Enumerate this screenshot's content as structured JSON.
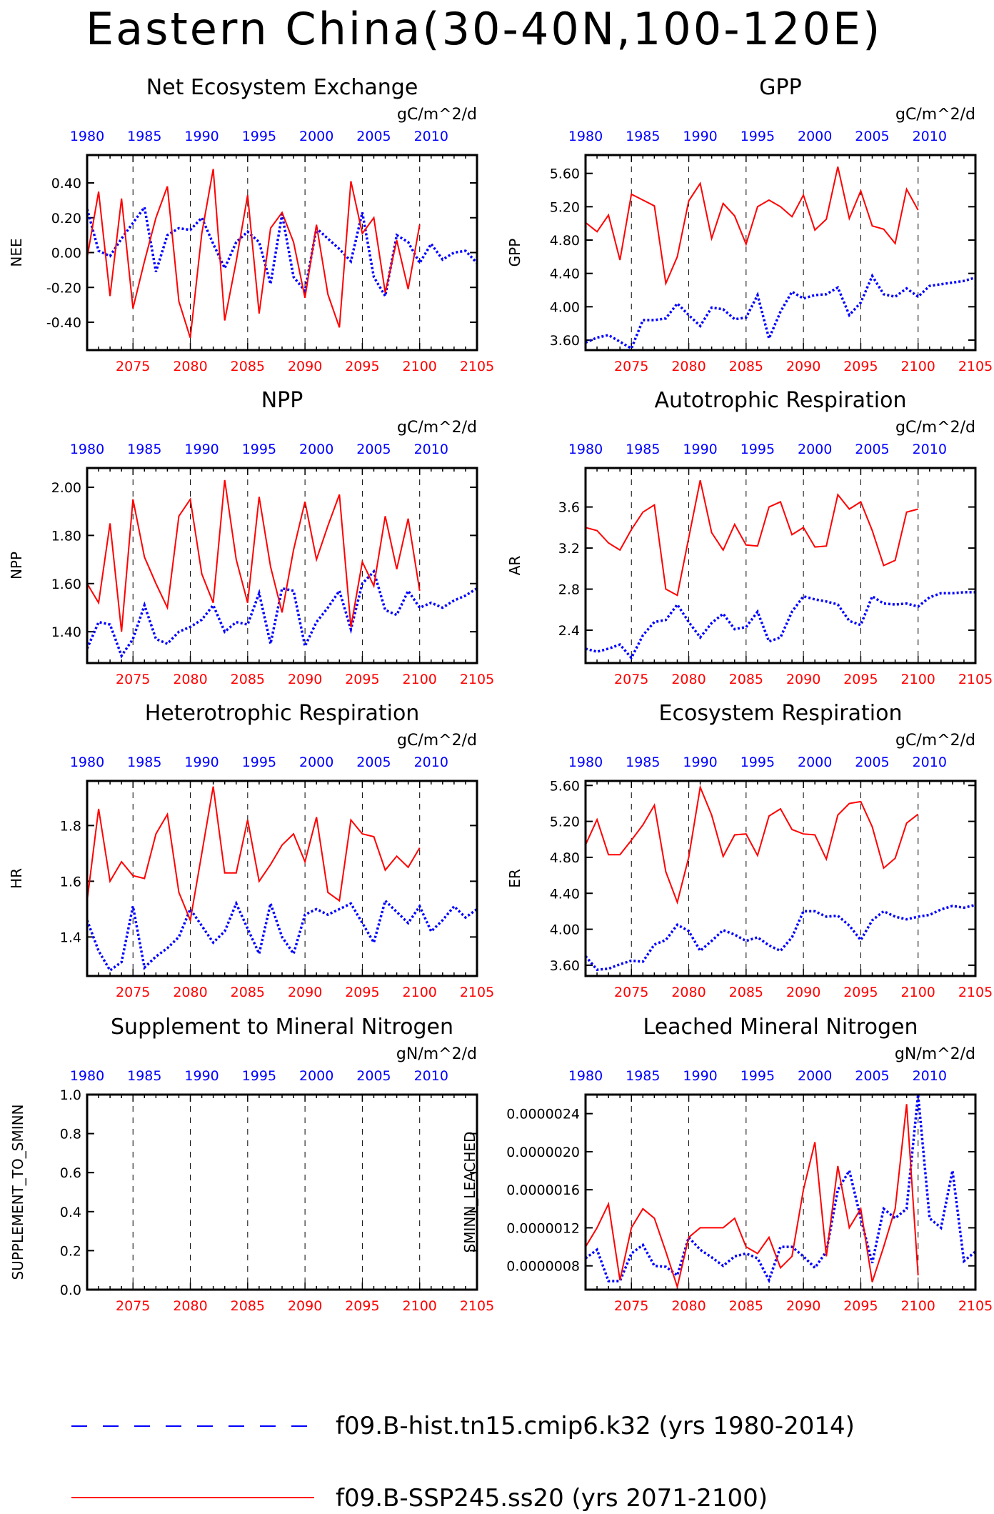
{
  "page_title": "Eastern China(30-40N,100-120E)",
  "colors": {
    "hist": "#0000ff",
    "ssp": "#ff0000",
    "axis": "#000000"
  },
  "legend": {
    "hist_label": "f09.B-hist.tn15.cmip6.k32 (yrs 1980-2014)",
    "ssp_label": "f09.B-SSP245.ss20 (yrs 2071-2100)"
  },
  "top_axis_ticks": [
    "1980",
    "1985",
    "1990",
    "1995",
    "2000",
    "2005",
    "2010"
  ],
  "bottom_axis_ticks": [
    "2075",
    "2080",
    "2085",
    "2090",
    "2095",
    "2100",
    "2105"
  ],
  "chart_data": [
    {
      "type": "line",
      "title": "Net Ecosystem Exchange",
      "units": "gC/m^2/d",
      "ylabel": "NEE",
      "ylim": [
        -0.56,
        0.56
      ],
      "yticks": [
        -0.4,
        -0.2,
        0.0,
        0.2,
        0.4
      ],
      "ytick_labels": [
        "-0.40",
        "-0.20",
        "0.00",
        "0.20",
        "0.40"
      ],
      "series": [
        {
          "name": "f09.B-hist.tn15.cmip6.k32 (yrs 1980-2014)",
          "years_from": 1980,
          "values": [
            0.25,
            0.01,
            -0.02,
            0.08,
            0.17,
            0.26,
            -0.11,
            0.1,
            0.14,
            0.13,
            0.2,
            0.05,
            -0.09,
            0.06,
            0.12,
            0.06,
            -0.18,
            0.22,
            -0.14,
            -0.22,
            0.14,
            0.08,
            0.02,
            -0.05,
            0.23,
            -0.14,
            -0.25,
            0.1,
            0.06,
            -0.06,
            0.05,
            -0.04,
            0.0,
            0.01,
            -0.06
          ]
        },
        {
          "name": "f09.B-SSP245.ss20 (yrs 2071-2100)",
          "years_from": 2071,
          "values": [
            -0.03,
            0.35,
            -0.25,
            0.31,
            -0.32,
            -0.05,
            0.2,
            0.38,
            -0.28,
            -0.49,
            0.11,
            0.48,
            -0.39,
            -0.05,
            0.33,
            -0.35,
            0.14,
            0.23,
            0.06,
            -0.26,
            0.16,
            -0.24,
            -0.43,
            0.41,
            0.11,
            0.2,
            -0.23,
            0.07,
            -0.21,
            0.16
          ]
        }
      ]
    },
    {
      "type": "line",
      "title": "GPP",
      "units": "gC/m^2/d",
      "ylabel": "GPP",
      "ylim": [
        3.48,
        5.82
      ],
      "yticks": [
        3.6,
        4.0,
        4.4,
        4.8,
        5.2,
        5.6
      ],
      "ytick_labels": [
        "3.60",
        "4.00",
        "4.40",
        "4.80",
        "5.20",
        "5.60"
      ],
      "series": [
        {
          "name": "f09.B-hist.tn15.cmip6.k32 (yrs 1980-2014)",
          "years_from": 1980,
          "values": [
            3.57,
            3.63,
            3.66,
            3.58,
            3.5,
            3.84,
            3.84,
            3.86,
            4.04,
            3.9,
            3.77,
            3.99,
            3.97,
            3.85,
            3.87,
            4.14,
            3.62,
            3.94,
            4.18,
            4.1,
            4.14,
            4.15,
            4.23,
            3.9,
            4.05,
            4.37,
            4.15,
            4.12,
            4.22,
            4.12,
            4.25,
            4.27,
            4.29,
            4.31,
            4.35
          ]
        },
        {
          "name": "f09.B-SSP245.ss20 (yrs 2071-2100)",
          "years_from": 2071,
          "values": [
            5.01,
            4.9,
            5.1,
            4.56,
            5.35,
            5.28,
            5.21,
            4.28,
            4.6,
            5.27,
            5.48,
            4.82,
            5.24,
            5.09,
            4.75,
            5.2,
            5.28,
            5.2,
            5.08,
            5.34,
            4.92,
            5.05,
            5.68,
            5.06,
            5.39,
            4.97,
            4.93,
            4.76,
            5.41,
            5.16
          ]
        }
      ]
    },
    {
      "type": "line",
      "title": "NPP",
      "units": "gC/m^2/d",
      "ylabel": "NPP",
      "ylim": [
        1.27,
        2.08
      ],
      "yticks": [
        1.4,
        1.6,
        1.8,
        2.0
      ],
      "ytick_labels": [
        "1.40",
        "1.60",
        "1.80",
        "2.00"
      ],
      "series": [
        {
          "name": "f09.B-hist.tn15.cmip6.k32 (yrs 1980-2014)",
          "years_from": 1980,
          "values": [
            1.33,
            1.44,
            1.43,
            1.3,
            1.37,
            1.51,
            1.37,
            1.35,
            1.4,
            1.42,
            1.45,
            1.51,
            1.4,
            1.44,
            1.43,
            1.56,
            1.35,
            1.58,
            1.57,
            1.34,
            1.44,
            1.5,
            1.57,
            1.41,
            1.6,
            1.65,
            1.49,
            1.47,
            1.57,
            1.5,
            1.52,
            1.5,
            1.53,
            1.55,
            1.58
          ]
        },
        {
          "name": "f09.B-SSP245.ss20 (yrs 2071-2100)",
          "years_from": 2071,
          "values": [
            1.6,
            1.52,
            1.85,
            1.4,
            1.95,
            1.71,
            1.6,
            1.5,
            1.88,
            1.95,
            1.64,
            1.52,
            2.03,
            1.7,
            1.52,
            1.96,
            1.67,
            1.48,
            1.74,
            1.94,
            1.7,
            1.84,
            1.97,
            1.42,
            1.69,
            1.59,
            1.88,
            1.66,
            1.87,
            1.57
          ]
        }
      ]
    },
    {
      "type": "line",
      "title": "Autotrophic Respiration",
      "units": "gC/m^2/d",
      "ylabel": "AR",
      "ylim": [
        2.08,
        3.98
      ],
      "yticks": [
        2.4,
        2.8,
        3.2,
        3.6
      ],
      "ytick_labels": [
        "2.4",
        "2.8",
        "3.2",
        "3.6"
      ],
      "series": [
        {
          "name": "f09.B-hist.tn15.cmip6.k32 (yrs 1980-2014)",
          "years_from": 1980,
          "values": [
            2.22,
            2.19,
            2.22,
            2.26,
            2.13,
            2.35,
            2.48,
            2.5,
            2.65,
            2.48,
            2.33,
            2.47,
            2.56,
            2.41,
            2.43,
            2.58,
            2.29,
            2.33,
            2.58,
            2.73,
            2.7,
            2.68,
            2.65,
            2.49,
            2.45,
            2.73,
            2.66,
            2.65,
            2.66,
            2.63,
            2.72,
            2.76,
            2.76,
            2.77,
            2.77
          ]
        },
        {
          "name": "f09.B-SSP245.ss20 (yrs 2071-2100)",
          "years_from": 2071,
          "values": [
            3.4,
            3.37,
            3.25,
            3.18,
            3.38,
            3.55,
            3.62,
            2.8,
            2.74,
            3.3,
            3.86,
            3.35,
            3.18,
            3.43,
            3.23,
            3.22,
            3.6,
            3.65,
            3.33,
            3.4,
            3.21,
            3.22,
            3.72,
            3.58,
            3.65,
            3.37,
            3.03,
            3.08,
            3.55,
            3.58
          ]
        }
      ]
    },
    {
      "type": "line",
      "title": "Heterotrophic Respiration",
      "units": "gC/m^2/d",
      "ylabel": "HR",
      "ylim": [
        1.26,
        1.96
      ],
      "yticks": [
        1.4,
        1.6,
        1.8
      ],
      "ytick_labels": [
        "1.4",
        "1.6",
        "1.8"
      ],
      "series": [
        {
          "name": "f09.B-hist.tn15.cmip6.k32 (yrs 1980-2014)",
          "years_from": 1980,
          "values": [
            1.46,
            1.35,
            1.28,
            1.31,
            1.51,
            1.29,
            1.33,
            1.36,
            1.4,
            1.5,
            1.44,
            1.38,
            1.42,
            1.52,
            1.43,
            1.34,
            1.52,
            1.4,
            1.34,
            1.48,
            1.5,
            1.48,
            1.5,
            1.52,
            1.45,
            1.38,
            1.53,
            1.49,
            1.45,
            1.51,
            1.42,
            1.46,
            1.51,
            1.47,
            1.5
          ]
        },
        {
          "name": "f09.B-SSP245.ss20 (yrs 2071-2100)",
          "years_from": 2071,
          "values": [
            1.53,
            1.86,
            1.6,
            1.67,
            1.62,
            1.61,
            1.77,
            1.84,
            1.56,
            1.46,
            1.7,
            1.94,
            1.63,
            1.63,
            1.82,
            1.6,
            1.66,
            1.73,
            1.77,
            1.67,
            1.83,
            1.56,
            1.53,
            1.82,
            1.77,
            1.76,
            1.64,
            1.69,
            1.65,
            1.72
          ]
        }
      ]
    },
    {
      "type": "line",
      "title": "Ecosystem Respiration",
      "units": "gC/m^2/d",
      "ylabel": "ER",
      "ylim": [
        3.48,
        5.65
      ],
      "yticks": [
        3.6,
        4.0,
        4.4,
        4.8,
        5.2,
        5.6
      ],
      "ytick_labels": [
        "3.60",
        "4.00",
        "4.40",
        "4.80",
        "5.20",
        "5.60"
      ],
      "series": [
        {
          "name": "f09.B-hist.tn15.cmip6.k32 (yrs 1980-2014)",
          "years_from": 1980,
          "values": [
            3.7,
            3.55,
            3.56,
            3.61,
            3.65,
            3.64,
            3.83,
            3.88,
            4.05,
            3.98,
            3.76,
            3.87,
            3.99,
            3.94,
            3.87,
            3.91,
            3.82,
            3.76,
            3.91,
            4.2,
            4.2,
            4.14,
            4.15,
            4.04,
            3.88,
            4.1,
            4.2,
            4.14,
            4.11,
            4.14,
            4.16,
            4.22,
            4.26,
            4.24,
            4.27
          ]
        },
        {
          "name": "f09.B-SSP245.ss20 (yrs 2071-2100)",
          "years_from": 2071,
          "values": [
            4.94,
            5.22,
            4.83,
            4.83,
            4.99,
            5.16,
            5.38,
            4.64,
            4.3,
            4.8,
            5.58,
            5.27,
            4.81,
            5.05,
            5.06,
            4.82,
            5.26,
            5.34,
            5.11,
            5.06,
            5.05,
            4.78,
            5.27,
            5.4,
            5.42,
            5.14,
            4.68,
            4.79,
            5.18,
            5.28
          ]
        }
      ]
    },
    {
      "type": "line",
      "title": "Supplement to Mineral Nitrogen",
      "units": "gN/m^2/d",
      "ylabel": "SUPPLEMENT_TO_SMINN",
      "ylim": [
        0.0,
        1.0
      ],
      "yticks": [
        0.0,
        0.2,
        0.4,
        0.6,
        0.8,
        1.0
      ],
      "ytick_labels": [
        "0.0",
        "0.2",
        "0.4",
        "0.6",
        "0.8",
        "1.0"
      ],
      "series": []
    },
    {
      "type": "line",
      "title": "Leached Mineral Nitrogen",
      "units": "gN/m^2/d",
      "ylabel": "SMINN_LEACHED",
      "ylim": [
        5.5e-07,
        2.6e-06
      ],
      "yticks": [
        8e-07,
        1.2e-06,
        1.6e-06,
        2e-06,
        2.4e-06
      ],
      "ytick_labels": [
        "0.0000008",
        "0.0000012",
        "0.0000016",
        "0.0000020",
        "0.0000024"
      ],
      "series": [
        {
          "name": "f09.B-hist.tn15.cmip6.k32 (yrs 1980-2014)",
          "years_from": 1980,
          "values": [
            8.8e-07,
            9.7e-07,
            6.4e-07,
            6.4e-07,
            9.3e-07,
            1.02e-06,
            8e-07,
            7.9e-07,
            7e-07,
            1.1e-06,
            9.7e-07,
            8.9e-07,
            8e-07,
            9e-07,
            9.3e-07,
            8.8e-07,
            6.5e-07,
            1e-06,
            1e-06,
            9e-07,
            7.8e-07,
            9.5e-07,
            1.6e-06,
            1.8e-06,
            1.3e-06,
            8.3e-07,
            1.4e-06,
            1.3e-06,
            1.4e-06,
            2.6e-06,
            1.3e-06,
            1.2e-06,
            1.8e-06,
            8.5e-07,
            9.5e-07
          ]
        },
        {
          "name": "f09.B-SSP245.ss20 (yrs 2071-2100)",
          "years_from": 2071,
          "values": [
            1e-06,
            1.2e-06,
            1.45e-06,
            6.5e-07,
            1.2e-06,
            1.4e-06,
            1.3e-06,
            9.5e-07,
            5.8e-07,
            1.1e-06,
            1.2e-06,
            1.2e-06,
            1.2e-06,
            1.3e-06,
            1e-06,
            9.3e-07,
            1.1e-06,
            7.8e-07,
            9e-07,
            1.6e-06,
            2.1e-06,
            9e-07,
            1.85e-06,
            1.2e-06,
            1.4e-06,
            6.3e-07,
            1e-06,
            1.4e-06,
            2.5e-06,
            7e-07
          ]
        }
      ]
    }
  ]
}
